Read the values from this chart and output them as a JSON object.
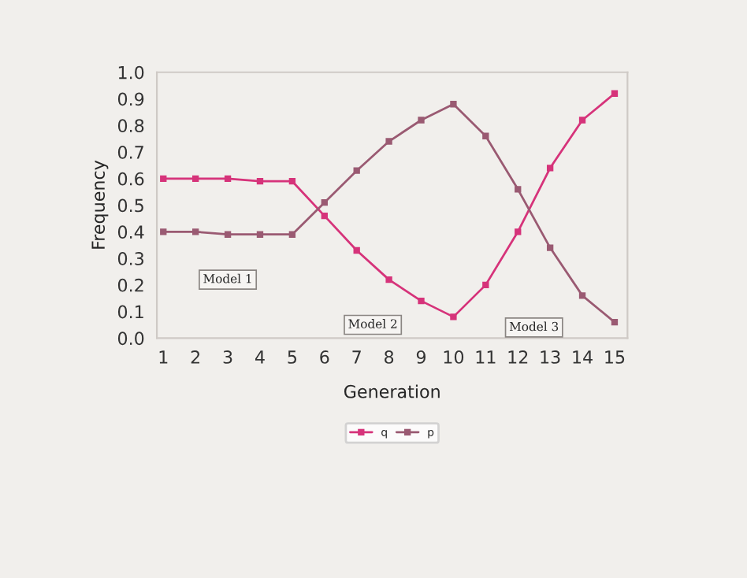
{
  "chart_data": {
    "type": "line",
    "xlabel": "Generation",
    "ylabel": "Frequency",
    "x": [
      1,
      2,
      3,
      4,
      5,
      6,
      7,
      8,
      9,
      10,
      11,
      12,
      13,
      14,
      15
    ],
    "series": [
      {
        "name": "q",
        "color": "#d6337a",
        "values": [
          0.6,
          0.6,
          0.6,
          0.59,
          0.59,
          0.46,
          0.33,
          0.22,
          0.14,
          0.08,
          0.2,
          0.4,
          0.64,
          0.82,
          0.92
        ]
      },
      {
        "name": "p",
        "color": "#9a5a72",
        "values": [
          0.4,
          0.4,
          0.39,
          0.39,
          0.39,
          0.51,
          0.63,
          0.74,
          0.82,
          0.88,
          0.76,
          0.56,
          0.34,
          0.16,
          0.06
        ]
      }
    ],
    "xlim": [
      0.8,
      15.4
    ],
    "xticks": [
      1,
      2,
      3,
      4,
      5,
      6,
      7,
      8,
      9,
      10,
      11,
      12,
      13,
      14,
      15
    ],
    "ylim": [
      0,
      1
    ],
    "yticks": [
      {
        "value": 0,
        "label": "0.0"
      },
      0.1,
      0.2,
      0.3,
      0.4,
      0.5,
      0.6,
      0.7,
      0.8,
      0.9,
      {
        "value": 1,
        "label": "1.0"
      }
    ],
    "annotations": [
      {
        "text": "Model 1",
        "x": 3,
        "y": 0.22
      },
      {
        "text": "Model 2",
        "x": 7.5,
        "y": 0.05
      },
      {
        "text": "Model 3",
        "x": 12.5,
        "y": 0.04
      }
    ],
    "marker": "square",
    "line_style": "solid",
    "grid": false,
    "legend": "bottom"
  }
}
